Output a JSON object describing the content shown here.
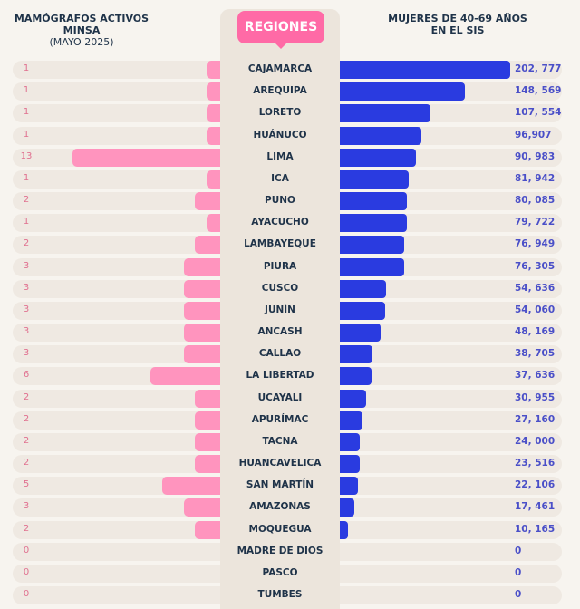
{
  "chart_data": {
    "type": "bar",
    "layout": "butterfly",
    "left_title": "MAMÓGRAFOS ACTIVOS MINSA",
    "left_subtitle": "(MAYO 2025)",
    "center_title": "REGIONES",
    "right_title_line1": "MUJERES DE 40-69 AÑOS",
    "right_title_line2": "EN EL SIS",
    "colors": {
      "left": "#ff94be",
      "right": "#2a3be0",
      "badge": "#ff6aa6"
    },
    "categories": [
      "CAJAMARCA",
      "AREQUIPA",
      "LORETO",
      "HUÁNUCO",
      "LIMA",
      "ICA",
      "PUNO",
      "AYACUCHO",
      "LAMBAYEQUE",
      "PIURA",
      "CUSCO",
      "JUNÍN",
      "ANCASH",
      "CALLAO",
      "LA LIBERTAD",
      "UCAYALI",
      "APURÍMAC",
      "TACNA",
      "HUANCAVELICA",
      "SAN MARTÍN",
      "AMAZONAS",
      "MOQUEGUA",
      "MADRE DE DIOS",
      "PASCO",
      "TUMBES"
    ],
    "series": [
      {
        "name": "MAMÓGRAFOS ACTIVOS MINSA",
        "values": [
          1,
          1,
          1,
          1,
          13,
          1,
          2,
          1,
          2,
          3,
          3,
          3,
          3,
          3,
          6,
          2,
          2,
          2,
          2,
          5,
          3,
          2,
          0,
          0,
          0
        ]
      },
      {
        "name": "MUJERES DE 40-69 AÑOS EN EL SIS",
        "values": [
          202777,
          148569,
          107554,
          96907,
          90983,
          81942,
          80085,
          79722,
          76949,
          76305,
          54636,
          54060,
          48169,
          38705,
          37636,
          30955,
          27160,
          24000,
          23516,
          22106,
          17461,
          10165,
          0,
          0,
          0
        ],
        "labels": [
          "202, 777",
          "148, 569",
          "107, 554",
          "96,907",
          "90, 983",
          "81, 942",
          "80, 085",
          "79, 722",
          "76, 949",
          "76, 305",
          "54, 636",
          "54, 060",
          "48, 169",
          "38, 705",
          "37, 636",
          "30, 955",
          "27, 160",
          "24, 000",
          "23, 516",
          "22, 106",
          "17, 461",
          "10, 165",
          "0",
          "0",
          "0"
        ]
      }
    ]
  }
}
